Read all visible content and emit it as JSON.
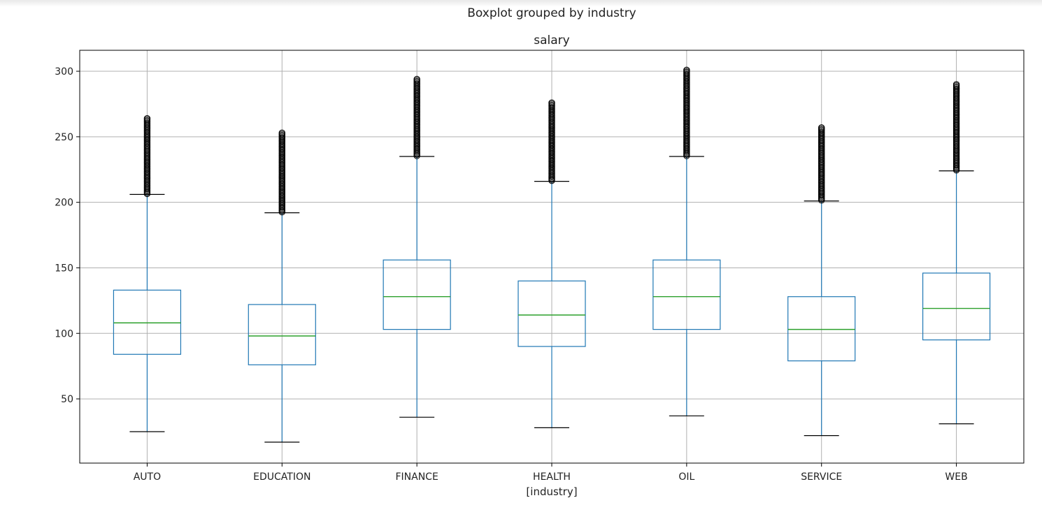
{
  "chart_data": {
    "type": "box",
    "suptitle": "Boxplot grouped by industry",
    "title": "salary",
    "xlabel": "[industry]",
    "ylabel": "",
    "ylim": [
      1,
      316
    ],
    "yticks": [
      50,
      100,
      150,
      200,
      250,
      300
    ],
    "grid": true,
    "colors": {
      "box": "#1f77b4",
      "median": "#2ca02c",
      "caps": "#000000",
      "grid": "#b0b0b0",
      "outlier": "#000000"
    },
    "categories": [
      "AUTO",
      "EDUCATION",
      "FINANCE",
      "HEALTH",
      "OIL",
      "SERVICE",
      "WEB"
    ],
    "boxes": [
      {
        "q1": 84,
        "median": 108,
        "q3": 133,
        "whisker_low": 25,
        "whisker_high": 206,
        "outlier_max": 264
      },
      {
        "q1": 76,
        "median": 98,
        "q3": 122,
        "whisker_low": 17,
        "whisker_high": 192,
        "outlier_max": 253
      },
      {
        "q1": 103,
        "median": 128,
        "q3": 156,
        "whisker_low": 36,
        "whisker_high": 235,
        "outlier_max": 294
      },
      {
        "q1": 90,
        "median": 114,
        "q3": 140,
        "whisker_low": 28,
        "whisker_high": 216,
        "outlier_max": 276
      },
      {
        "q1": 103,
        "median": 128,
        "q3": 156,
        "whisker_low": 37,
        "whisker_high": 235,
        "outlier_max": 301
      },
      {
        "q1": 79,
        "median": 103,
        "q3": 128,
        "whisker_low": 22,
        "whisker_high": 201,
        "outlier_max": 257
      },
      {
        "q1": 95,
        "median": 119,
        "q3": 146,
        "whisker_low": 31,
        "whisker_high": 224,
        "outlier_max": 290
      }
    ]
  }
}
